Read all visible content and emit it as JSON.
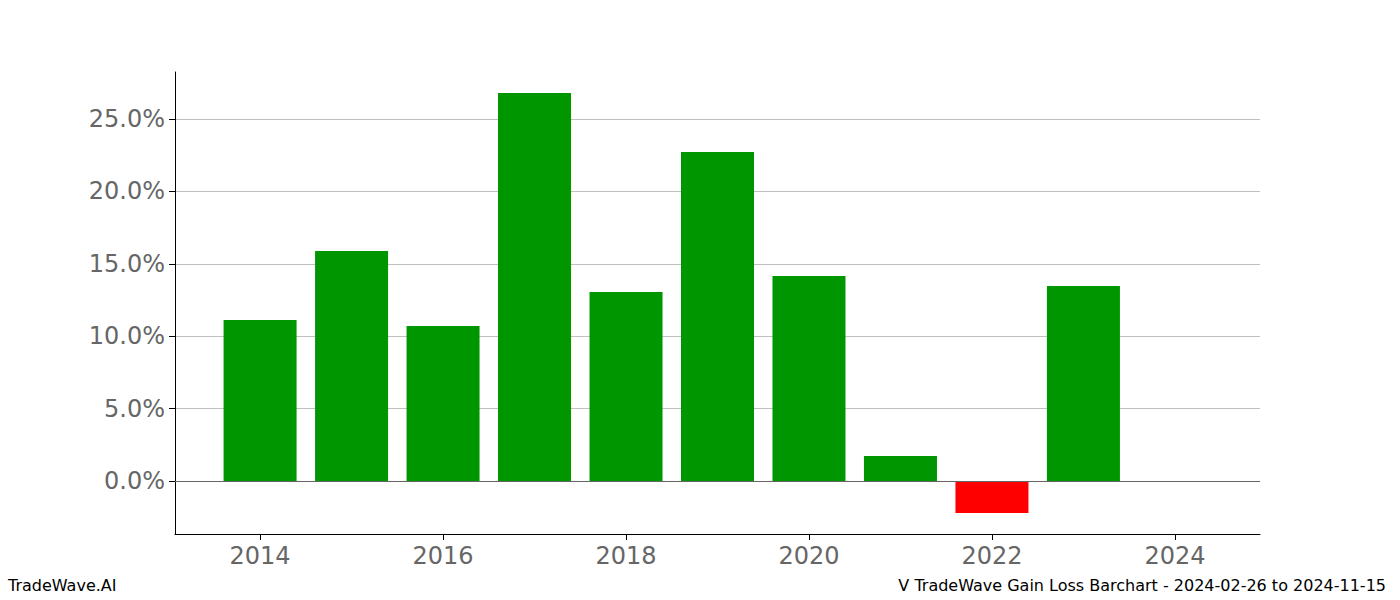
{
  "chart_data": {
    "type": "bar",
    "x": [
      2014,
      2015,
      2016,
      2017,
      2018,
      2019,
      2020,
      2021,
      2022,
      2023
    ],
    "values": [
      11.12,
      15.88,
      10.7,
      26.8,
      13.05,
      22.72,
      14.16,
      1.73,
      -2.21,
      13.47
    ],
    "colors": [
      "#009600",
      "#009600",
      "#009600",
      "#009600",
      "#009600",
      "#009600",
      "#009600",
      "#009600",
      "#ff0000",
      "#009600"
    ],
    "xlim": [
      2013.07,
      2024.93
    ],
    "xticks": [
      2014,
      2016,
      2018,
      2020,
      2022,
      2024
    ],
    "ylim": [
      -3.66,
      28.25
    ],
    "yticks": [
      {
        "value": 0,
        "label": "0.0%"
      },
      {
        "value": 5,
        "label": "5.0%"
      },
      {
        "value": 10,
        "label": "10.0%"
      },
      {
        "value": 15,
        "label": "15.0%"
      },
      {
        "value": 20,
        "label": "20.0%"
      },
      {
        "value": 25,
        "label": "25.0%"
      }
    ],
    "grid": true,
    "annotations": [
      "TradeWave.AI",
      "V TradeWave Gain Loss Barchart - 2024-02-26 to 2024-11-15"
    ]
  }
}
